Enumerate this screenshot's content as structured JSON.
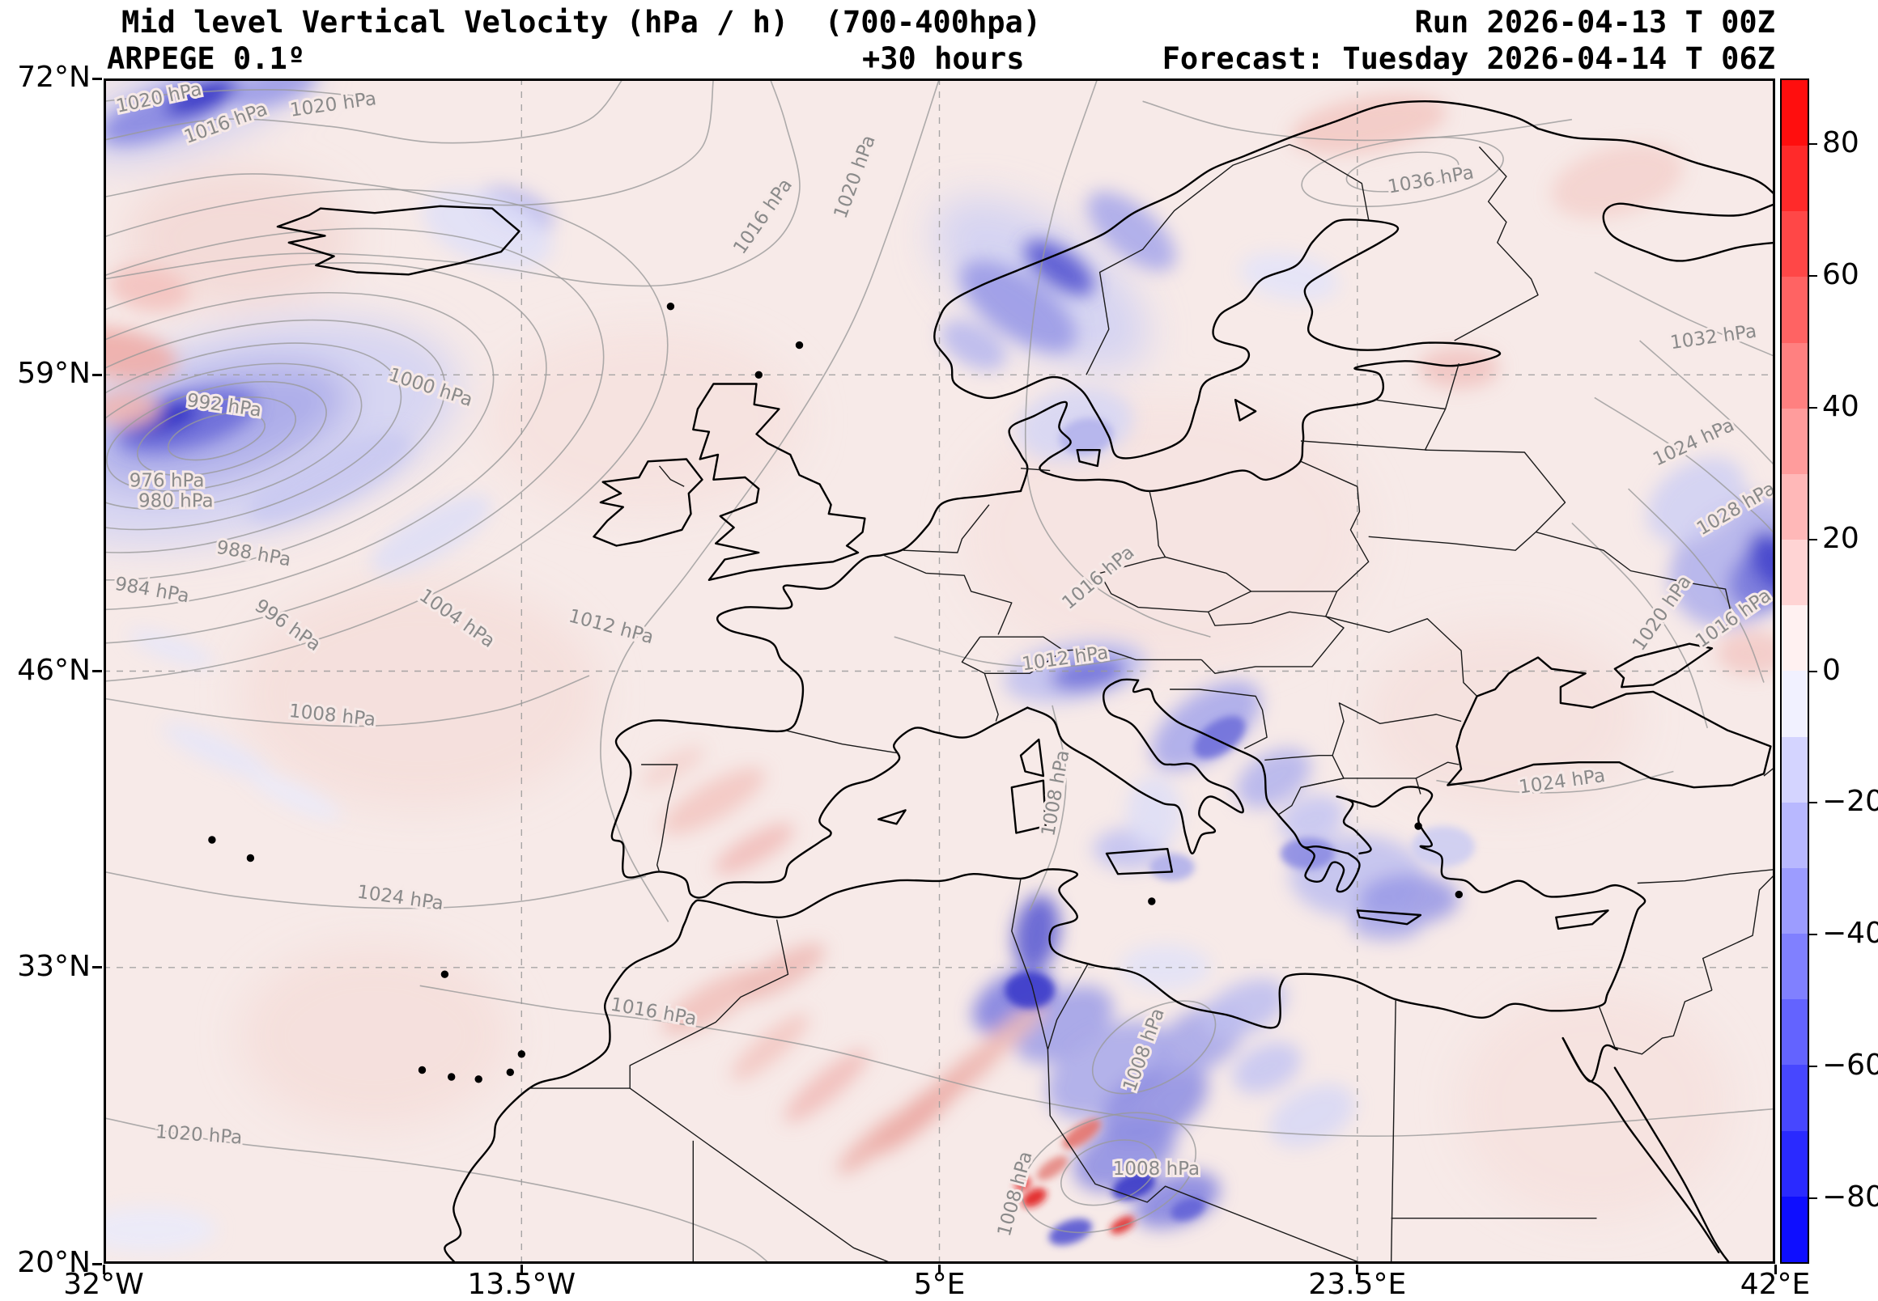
{
  "header": {
    "title": "Mid level Vertical Velocity (hPa / h)  (700-400hpa)",
    "model": "ARPEGE 0.1º",
    "lead_time": "+30 hours",
    "run_label": "Run 2026-04-13 T 00Z",
    "forecast_label": "Forecast: Tuesday 2026-04-14 T 06Z"
  },
  "axes": {
    "lat_ticks": [
      {
        "label": "72°N",
        "lat": 72
      },
      {
        "label": "59°N",
        "lat": 59
      },
      {
        "label": "46°N",
        "lat": 46
      },
      {
        "label": "33°N",
        "lat": 33
      },
      {
        "label": "20°N",
        "lat": 20
      }
    ],
    "lon_ticks": [
      {
        "label": "32°W",
        "lon": -32
      },
      {
        "label": "13.5°W",
        "lon": -13.5
      },
      {
        "label": "5°E",
        "lon": 5
      },
      {
        "label": "23.5°E",
        "lon": 23.5
      },
      {
        "label": "42°E",
        "lon": 42
      }
    ]
  },
  "colorbar": {
    "vmin": -90,
    "vmax": 90,
    "ticks": [
      {
        "label": "80",
        "value": 80
      },
      {
        "label": "60",
        "value": 60
      },
      {
        "label": "40",
        "value": 40
      },
      {
        "label": "20",
        "value": 20
      },
      {
        "label": "0",
        "value": 0
      },
      {
        "label": "−20",
        "value": -20
      },
      {
        "label": "−40",
        "value": -40
      },
      {
        "label": "−60",
        "value": -60
      },
      {
        "label": "−80",
        "value": -80
      }
    ],
    "segment_colors": [
      "#ff0e0e",
      "#ff2a2a",
      "#ff4747",
      "#ff6363",
      "#ff8080",
      "#ff9c9c",
      "#ffb8b8",
      "#ffd4d4",
      "#fff1f1",
      "#f1f1ff",
      "#d4d4ff",
      "#b8b8ff",
      "#9c9cff",
      "#8080ff",
      "#6363ff",
      "#4747ff",
      "#2a2aff",
      "#0e0eff"
    ]
  },
  "isobar_labels": [
    {
      "text": "1020 hPa",
      "lon": -29.5,
      "lat": 70.9,
      "rot": -12
    },
    {
      "text": "1016 hPa",
      "lon": -26.5,
      "lat": 69.8,
      "rot": -20
    },
    {
      "text": "1020 hPa",
      "lon": -21.8,
      "lat": 70.6,
      "rot": -8
    },
    {
      "text": "1020 hPa",
      "lon": 1.5,
      "lat": 67.6,
      "rot": -70
    },
    {
      "text": "1016 hPa",
      "lon": -2.6,
      "lat": 65.8,
      "rot": -55
    },
    {
      "text": "1036 hPa",
      "lon": 26.8,
      "lat": 67.3,
      "rot": -10
    },
    {
      "text": "1032 hPa",
      "lon": 39.3,
      "lat": 60.4,
      "rot": -8
    },
    {
      "text": "1000 hPa",
      "lon": -17.6,
      "lat": 58.2,
      "rot": 18
    },
    {
      "text": "992 hPa",
      "lon": -26.7,
      "lat": 57.4,
      "rot": 8
    },
    {
      "text": "976 hPa",
      "lon": -29.2,
      "lat": 54.1,
      "rot": 0
    },
    {
      "text": "980 hPa",
      "lon": -28.8,
      "lat": 53.2,
      "rot": 0
    },
    {
      "text": "988 hPa",
      "lon": -25.4,
      "lat": 50.9,
      "rot": 10
    },
    {
      "text": "984 hPa",
      "lon": -29.9,
      "lat": 49.3,
      "rot": 10
    },
    {
      "text": "996 hPa",
      "lon": -24.0,
      "lat": 47.8,
      "rot": 35
    },
    {
      "text": "1004 hPa",
      "lon": -16.5,
      "lat": 48.1,
      "rot": 35
    },
    {
      "text": "1012 hPa",
      "lon": -9.6,
      "lat": 47.7,
      "rot": 15
    },
    {
      "text": "1016 hPa",
      "lon": 12.2,
      "lat": 49.9,
      "rot": -40
    },
    {
      "text": "1012 hPa",
      "lon": 10.6,
      "lat": 46.3,
      "rot": -8
    },
    {
      "text": "1020 hPa",
      "lon": 37.2,
      "lat": 48.4,
      "rot": -55
    },
    {
      "text": "1016 hPa",
      "lon": 40.3,
      "lat": 48.1,
      "rot": -35
    },
    {
      "text": "1024 hPa",
      "lon": 38.5,
      "lat": 55.8,
      "rot": -25
    },
    {
      "text": "1028 hPa",
      "lon": 40.4,
      "lat": 52.9,
      "rot": -30
    },
    {
      "text": "1008 hPa",
      "lon": -21.9,
      "lat": 43.8,
      "rot": 6
    },
    {
      "text": "1008 hPa",
      "lon": 10.4,
      "lat": 40.6,
      "rot": -80
    },
    {
      "text": "1024 hPa",
      "lon": 32.6,
      "lat": 40.9,
      "rot": -8
    },
    {
      "text": "1024 hPa",
      "lon": -18.9,
      "lat": 35.8,
      "rot": 8
    },
    {
      "text": "1016 hPa",
      "lon": -7.7,
      "lat": 30.8,
      "rot": 10
    },
    {
      "text": "1020 hPa",
      "lon": -27.8,
      "lat": 25.4,
      "rot": 4
    },
    {
      "text": "1008 hPa",
      "lon": 14.6,
      "lat": 23.9,
      "rot": 0
    },
    {
      "text": "1008 hPa",
      "lon": 8.6,
      "lat": 23.0,
      "rot": -75
    },
    {
      "text": "1008 hPa",
      "lon": 14.3,
      "lat": 29.3,
      "rot": -70
    }
  ],
  "chart_data": {
    "type": "heatmap",
    "title": "Mid level Vertical Velocity (hPa / h) (700-400hpa)",
    "units": "hPa / h",
    "model": "ARPEGE 0.1º",
    "run": "2026-04-13 00Z",
    "forecast_valid": "Tuesday 2026-04-14 06Z",
    "lead_hours": 30,
    "extent": {
      "lon_min": -32,
      "lon_max": 42,
      "lat_min": 20,
      "lat_max": 72
    },
    "colorbar_range": [
      -90,
      90
    ],
    "isobars_hPa_range": [
      976,
      1036
    ],
    "style": {
      "base_fill": "#f7eae8",
      "coast_color": "#000000",
      "border_color": "#1a1a1a",
      "isobar_color": "#9a9a9a",
      "grid_color": "#999999",
      "positive_color_max": "#ff0e0e",
      "negative_color_max": "#0e0eff"
    },
    "features": [
      {
        "label": "deep ascent center (blue) in Atlantic low west of Ireland",
        "lon": -28.5,
        "lat": 57,
        "approx_value_hPa_h": -70
      },
      {
        "label": "ascent maximum NW corner near Greenland coast",
        "lon": -28,
        "lat": 71,
        "approx_value_hPa_h": -60
      },
      {
        "label": "ascent band along Norwegian coast",
        "lon": 10,
        "lat": 63.5,
        "approx_value_hPa_h": -45
      },
      {
        "label": "ascent patch over Denmark / S Sweden",
        "lon": 11,
        "lat": 56.5,
        "approx_value_hPa_h": -20
      },
      {
        "label": "ascent over eastern Alps",
        "lon": 11.5,
        "lat": 46,
        "approx_value_hPa_h": -35
      },
      {
        "label": "ascent along Dinaric Alps / Adriatic",
        "lon": 17,
        "lat": 43.3,
        "approx_value_hPa_h": -35
      },
      {
        "label": "ascent over Greece / Aegean",
        "lon": 24,
        "lat": 36.5,
        "approx_value_hPa_h": -30
      },
      {
        "label": "strong ascent NE Algeria / Tunisia",
        "lon": 9,
        "lat": 33,
        "approx_value_hPa_h": -55
      },
      {
        "label": "convective ascent/descent couplets central Sahara",
        "lon": 12,
        "lat": 24,
        "approx_value_hPa_h": -60
      },
      {
        "label": "strong descent spots central Sahara",
        "lon": 9.2,
        "lat": 22.9,
        "approx_value_hPa_h": 75
      },
      {
        "label": "ascent near east edge (W Russia / E Ukraine)",
        "lon": 41,
        "lat": 50.5,
        "approx_value_hPa_h": -40
      },
      {
        "label": "weak descent (pale pink) over most of Atlantic and Europe",
        "lon": null,
        "lat": null,
        "approx_value_hPa_h": 8
      }
    ],
    "blobs": [
      [
        -18,
        45,
        8,
        5,
        0,
        "#f5dedb"
      ],
      [
        -8,
        57,
        7,
        4,
        0,
        "#f6e1de"
      ],
      [
        15,
        52,
        9,
        6,
        0,
        "#f6e3e0"
      ],
      [
        30,
        44,
        6,
        4,
        0,
        "#f5e0dd"
      ],
      [
        -20,
        30,
        6,
        4,
        0,
        "#f5dedb"
      ],
      [
        34,
        27,
        6,
        5,
        0,
        "#f6e1de"
      ],
      [
        -26,
        65,
        5,
        3,
        0,
        "#f3d8d5"
      ],
      [
        -26,
        56.5,
        10,
        4.5,
        -15,
        "#d3d3f2"
      ],
      [
        -27,
        56.8,
        6,
        2.4,
        -15,
        "#a8a8e8"
      ],
      [
        -28.3,
        57,
        3.2,
        1.2,
        -15,
        "#6a6ad8"
      ],
      [
        -29.3,
        57.1,
        1.6,
        0.6,
        -15,
        "#2a2ac4"
      ],
      [
        -22,
        54.5,
        4,
        1.2,
        -25,
        "#c8c8f0"
      ],
      [
        -17.5,
        52,
        3,
        1,
        -30,
        "#dedef6"
      ],
      [
        -28,
        70.9,
        5.5,
        1.8,
        -20,
        "#c9c9f0"
      ],
      [
        -29.3,
        70.5,
        3,
        1,
        -20,
        "#8686e1"
      ],
      [
        -27.6,
        71.2,
        1.8,
        0.6,
        -20,
        "#2e2ec4"
      ],
      [
        -24.5,
        71.6,
        2,
        0.7,
        -15,
        "#9a9ae6"
      ],
      [
        -13.8,
        66.2,
        1.8,
        0.9,
        20,
        "#b4b4ed"
      ],
      [
        -15,
        65.4,
        3,
        1.5,
        20,
        "#e0e0f7"
      ],
      [
        9.5,
        63,
        5.5,
        2.6,
        35,
        "#d0d0f3"
      ],
      [
        8.5,
        62,
        3,
        1.3,
        35,
        "#9a9ae6"
      ],
      [
        10.3,
        63.7,
        1.8,
        0.8,
        35,
        "#5454d0"
      ],
      [
        13.5,
        65.3,
        2.4,
        1.1,
        40,
        "#a8a8ea"
      ],
      [
        6.5,
        60.3,
        1.6,
        0.9,
        30,
        "#b8b8ee"
      ],
      [
        11,
        56.8,
        2.6,
        1.6,
        -10,
        "#d6d6f4"
      ],
      [
        11.5,
        56.3,
        1.2,
        0.8,
        -10,
        "#b2b2ec"
      ],
      [
        20.5,
        63.3,
        2.2,
        1,
        10,
        "#e4e4f8"
      ],
      [
        40.5,
        50.8,
        3.4,
        2.6,
        -35,
        "#b0b0ec"
      ],
      [
        41.6,
        50.2,
        1.8,
        1.3,
        -35,
        "#7878dc"
      ],
      [
        42,
        50.8,
        1,
        1.5,
        -35,
        "#4646cc"
      ],
      [
        38.5,
        53.5,
        2.4,
        1.6,
        -35,
        "#d0d0f3"
      ],
      [
        11,
        46,
        3.2,
        1.3,
        -10,
        "#c0c0ef"
      ],
      [
        11.6,
        45.9,
        1.7,
        0.7,
        -10,
        "#7070da"
      ],
      [
        16.8,
        43.6,
        2.8,
        1.4,
        -35,
        "#a8a8ea"
      ],
      [
        17.4,
        43.1,
        1.3,
        0.7,
        -35,
        "#6e6ed9"
      ],
      [
        19.8,
        41.3,
        1.8,
        1.1,
        -30,
        "#b4b4ed"
      ],
      [
        21.5,
        39.5,
        1.5,
        1,
        -20,
        "#c5c5f1"
      ],
      [
        23.5,
        37,
        3,
        1.8,
        0,
        "#c0c0ef"
      ],
      [
        21.3,
        38,
        1.2,
        0.7,
        0,
        "#8a8ae2"
      ],
      [
        25.8,
        36,
        2.2,
        1.1,
        0,
        "#9a9ae6"
      ],
      [
        24.8,
        34.9,
        1.6,
        0.7,
        0,
        "#aaaae9"
      ],
      [
        27.3,
        38.3,
        1.4,
        0.9,
        0,
        "#ccccf1"
      ],
      [
        13.4,
        38.2,
        1.6,
        0.9,
        0,
        "#c2c2f0"
      ],
      [
        15.3,
        37.4,
        1,
        0.6,
        0,
        "#aeaeeb"
      ],
      [
        14.5,
        39.8,
        1.2,
        1.6,
        0,
        "#dedef6"
      ],
      [
        9.3,
        34.5,
        1,
        1.7,
        10,
        "#5a5ad2"
      ],
      [
        9,
        32,
        1.1,
        0.8,
        0,
        "#3a3ac8"
      ],
      [
        8.3,
        31.5,
        2,
        1.2,
        -30,
        "#8080e0"
      ],
      [
        10.5,
        30.5,
        2.4,
        1.4,
        -30,
        "#a0a0e7"
      ],
      [
        12.5,
        28.5,
        3,
        1.8,
        -30,
        "#aaaae9"
      ],
      [
        14.5,
        27,
        2.6,
        1.5,
        -30,
        "#9090e3"
      ],
      [
        16.5,
        29.8,
        2.2,
        1.3,
        -30,
        "#a6a6e8"
      ],
      [
        18.5,
        31.2,
        2,
        1.1,
        -25,
        "#bebeef"
      ],
      [
        13.2,
        24.8,
        2.4,
        1.4,
        -25,
        "#8e8ee3"
      ],
      [
        15.5,
        22.8,
        2,
        1.1,
        -20,
        "#8484e0"
      ],
      [
        13.6,
        23.4,
        1,
        0.55,
        -20,
        "#3434c6"
      ],
      [
        10.8,
        21.4,
        1,
        0.5,
        -20,
        "#5252d0"
      ],
      [
        16,
        22.4,
        0.8,
        0.45,
        -20,
        "#6262d6"
      ],
      [
        19.5,
        28.6,
        1.6,
        1,
        -25,
        "#c6c6f1"
      ],
      [
        21.5,
        26.5,
        2,
        1.2,
        -25,
        "#d8d8f5"
      ],
      [
        15,
        33,
        2,
        1,
        0,
        "#e2e2f7"
      ],
      [
        -27,
        42.5,
        2.6,
        0.6,
        25,
        "#e6e6f8"
      ],
      [
        -23.5,
        40.5,
        2.2,
        0.5,
        25,
        "#eaeafa"
      ],
      [
        -29,
        47,
        2,
        0.5,
        20,
        "#e6e6f8"
      ],
      [
        -30,
        21.5,
        3,
        1,
        0,
        "#ebebf9"
      ],
      [
        4,
        26.5,
        2.6,
        0.6,
        -40,
        "#eba49e"
      ],
      [
        6.2,
        28.4,
        2.4,
        0.55,
        -40,
        "#edb0ab"
      ],
      [
        2.2,
        25.4,
        2.2,
        0.5,
        -40,
        "#edb0ab"
      ],
      [
        8,
        30,
        2.2,
        0.5,
        -40,
        "#eebbb6"
      ],
      [
        0,
        27.8,
        2.4,
        0.6,
        -40,
        "#f0bcb8"
      ],
      [
        -2.5,
        29.5,
        2.2,
        0.6,
        -40,
        "#f2c6c2"
      ],
      [
        9.2,
        22.9,
        0.6,
        0.35,
        -30,
        "#e01414"
      ],
      [
        8.7,
        23.5,
        0.4,
        0.25,
        -30,
        "#e83333"
      ],
      [
        13.1,
        21.7,
        0.6,
        0.3,
        -30,
        "#df2b2b"
      ],
      [
        11.3,
        25.7,
        1,
        0.4,
        -35,
        "#e4706a"
      ],
      [
        10,
        24.2,
        0.8,
        0.35,
        -35,
        "#e5857f"
      ],
      [
        -5,
        31.5,
        2.6,
        0.8,
        -30,
        "#f0c0bc"
      ],
      [
        -2,
        32.8,
        2.2,
        0.7,
        -30,
        "#eebbb6"
      ],
      [
        -5,
        40.3,
        2.6,
        0.8,
        -30,
        "#f2c6c2"
      ],
      [
        -3.2,
        38.2,
        2,
        0.6,
        -30,
        "#f0bcb8"
      ],
      [
        -6.8,
        41.8,
        1.6,
        0.5,
        -30,
        "#f4d2ce"
      ],
      [
        -31.3,
        59.9,
        2.6,
        1.1,
        10,
        "#eeaca7"
      ],
      [
        -30,
        62.8,
        1.8,
        1,
        10,
        "#f2c2be"
      ],
      [
        -31,
        57.5,
        1.5,
        0.8,
        0,
        "#f0b6b2"
      ],
      [
        24,
        70,
        3.5,
        1.2,
        -10,
        "#f2c8c4"
      ],
      [
        35,
        67.5,
        3,
        1.5,
        -15,
        "#f4d2ce"
      ],
      [
        28,
        59.3,
        1.8,
        0.9,
        0,
        "#f0c4c0"
      ],
      [
        41,
        46.8,
        1.6,
        1,
        0,
        "#f2cac6"
      ]
    ]
  }
}
